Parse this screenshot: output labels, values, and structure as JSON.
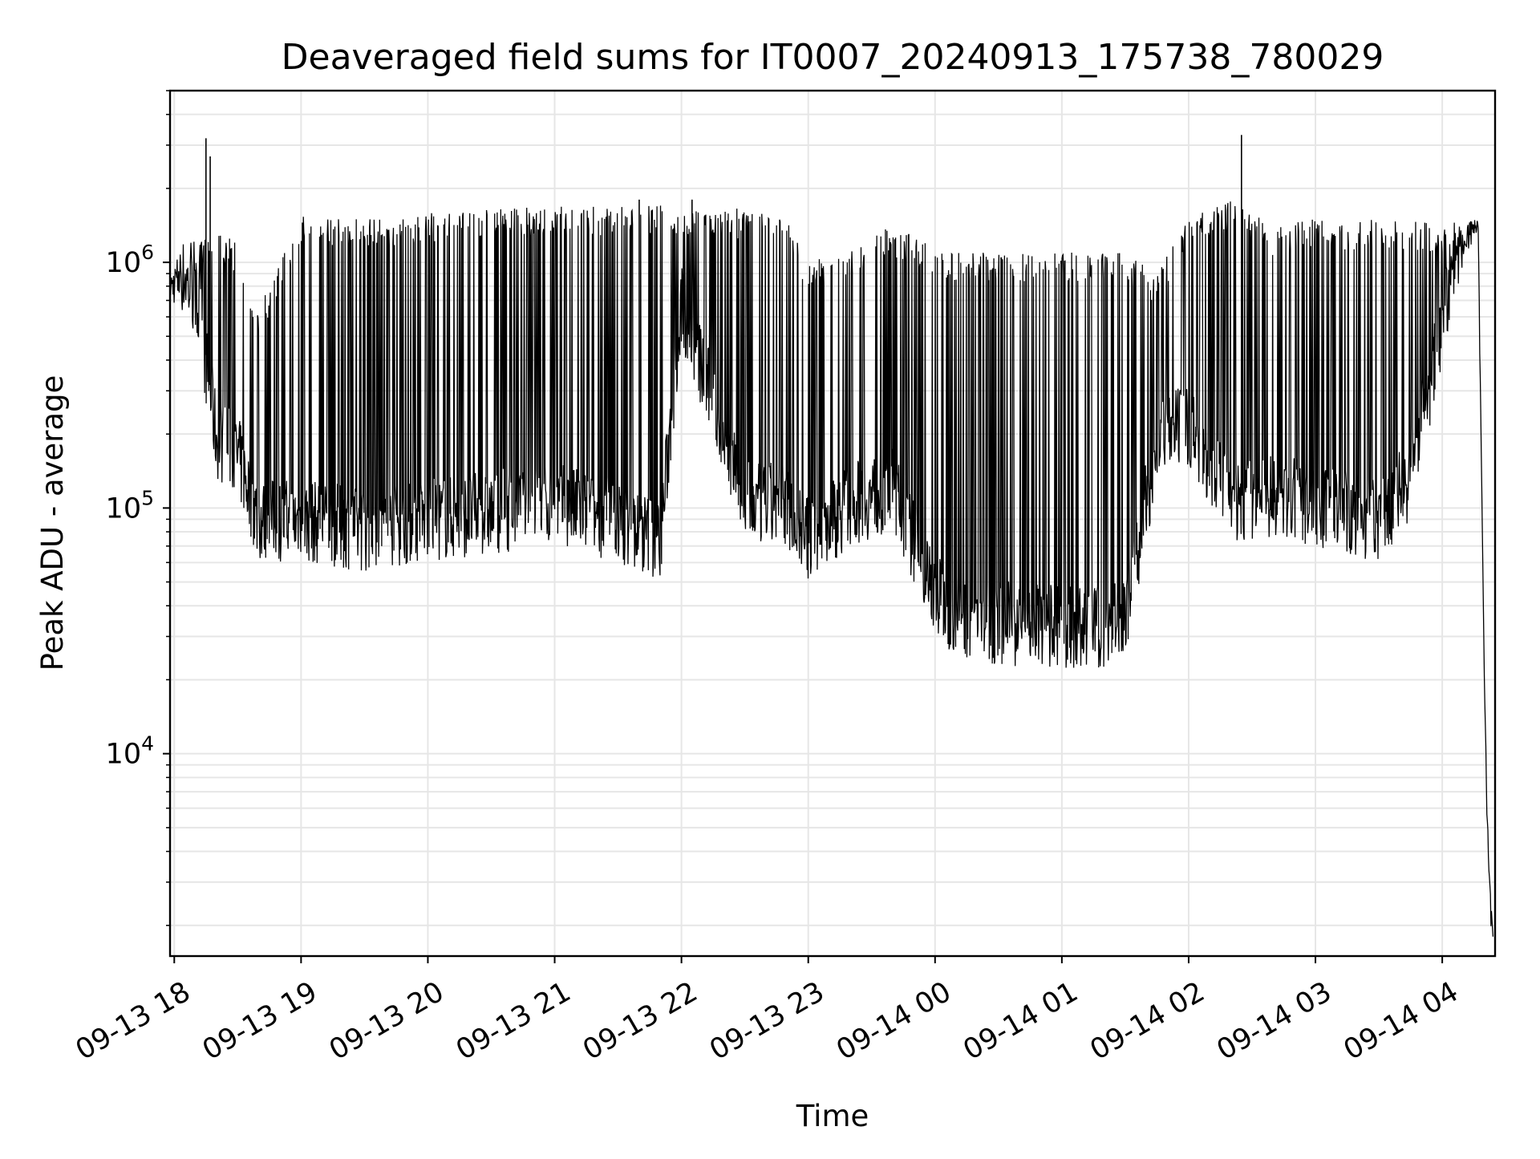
{
  "chart_data": {
    "type": "line",
    "title": "Deaveraged field sums for IT0007_20240913_175738_780029",
    "xlabel": "Time",
    "ylabel": "Peak ADU - average",
    "yscale": "log",
    "ylim": [
      1500,
      5000000
    ],
    "xlim": [
      "2024-09-13 17:58",
      "2024-09-14 04:25"
    ],
    "grid": true,
    "x_ticks": [
      "09-13 18",
      "09-13 19",
      "09-13 20",
      "09-13 21",
      "09-13 22",
      "09-13 23",
      "09-14 00",
      "09-14 01",
      "09-14 02",
      "09-14 03",
      "09-14 04"
    ],
    "y_ticks": [
      {
        "value": 10000,
        "base": "10",
        "exp": "4"
      },
      {
        "value": 100000,
        "base": "10",
        "exp": "5"
      },
      {
        "value": 1000000,
        "base": "10",
        "exp": "6"
      }
    ],
    "series": [
      {
        "color": "#000000",
        "x": [
          "2024-09-13 17:58",
          "2024-09-13 18:05",
          "2024-09-13 18:12",
          "2024-09-13 18:20",
          "2024-09-13 18:30",
          "2024-09-13 18:40",
          "2024-09-13 19:00",
          "2024-09-13 19:30",
          "2024-09-13 20:00",
          "2024-09-13 20:30",
          "2024-09-13 21:00",
          "2024-09-13 21:30",
          "2024-09-13 21:50",
          "2024-09-13 22:00",
          "2024-09-13 22:30",
          "2024-09-13 22:50",
          "2024-09-13 23:00",
          "2024-09-13 23:20",
          "2024-09-13 23:40",
          "2024-09-14 00:00",
          "2024-09-14 00:10",
          "2024-09-14 00:30",
          "2024-09-14 01:00",
          "2024-09-14 01:20",
          "2024-09-14 01:30",
          "2024-09-14 01:45",
          "2024-09-14 02:00",
          "2024-09-14 02:20",
          "2024-09-14 02:40",
          "2024-09-14 03:00",
          "2024-09-14 03:30",
          "2024-09-14 03:45",
          "2024-09-14 04:00",
          "2024-09-14 04:10",
          "2024-09-14 04:17",
          "2024-09-14 04:20",
          "2024-09-14 04:22",
          "2024-09-14 04:24"
        ],
        "low": [
          700000,
          600000,
          400000,
          130000,
          110000,
          60000,
          60000,
          55000,
          60000,
          65000,
          70000,
          60000,
          50000,
          450000,
          70000,
          70000,
          50000,
          70000,
          80000,
          30000,
          25000,
          23000,
          22000,
          22000,
          25000,
          120000,
          150000,
          70000,
          75000,
          70000,
          60000,
          90000,
          380000,
          1000000,
          1400000,
          18000,
          3500,
          1800
        ],
        "high": [
          900000,
          1300000,
          1200000,
          1400000,
          1200000,
          650000,
          1600000,
          1500000,
          1600000,
          1650000,
          1700000,
          1700000,
          1750000,
          1700000,
          1650000,
          1500000,
          1000000,
          1200000,
          1400000,
          1200000,
          1100000,
          1100000,
          1100000,
          1100000,
          1100000,
          900000,
          1500000,
          1800000,
          1400000,
          1500000,
          1500000,
          1500000,
          1400000,
          1500000,
          1500000,
          18000,
          3500,
          1800
        ],
        "spikes": [
          {
            "x": "2024-09-13 18:15",
            "y": 3200000
          },
          {
            "x": "2024-09-13 18:17",
            "y": 2700000
          },
          {
            "x": "2024-09-14 02:25",
            "y": 3300000
          },
          {
            "x": "2024-09-13 22:05",
            "y": 1800000
          },
          {
            "x": "2024-09-13 21:40",
            "y": 1800000
          }
        ]
      }
    ]
  }
}
